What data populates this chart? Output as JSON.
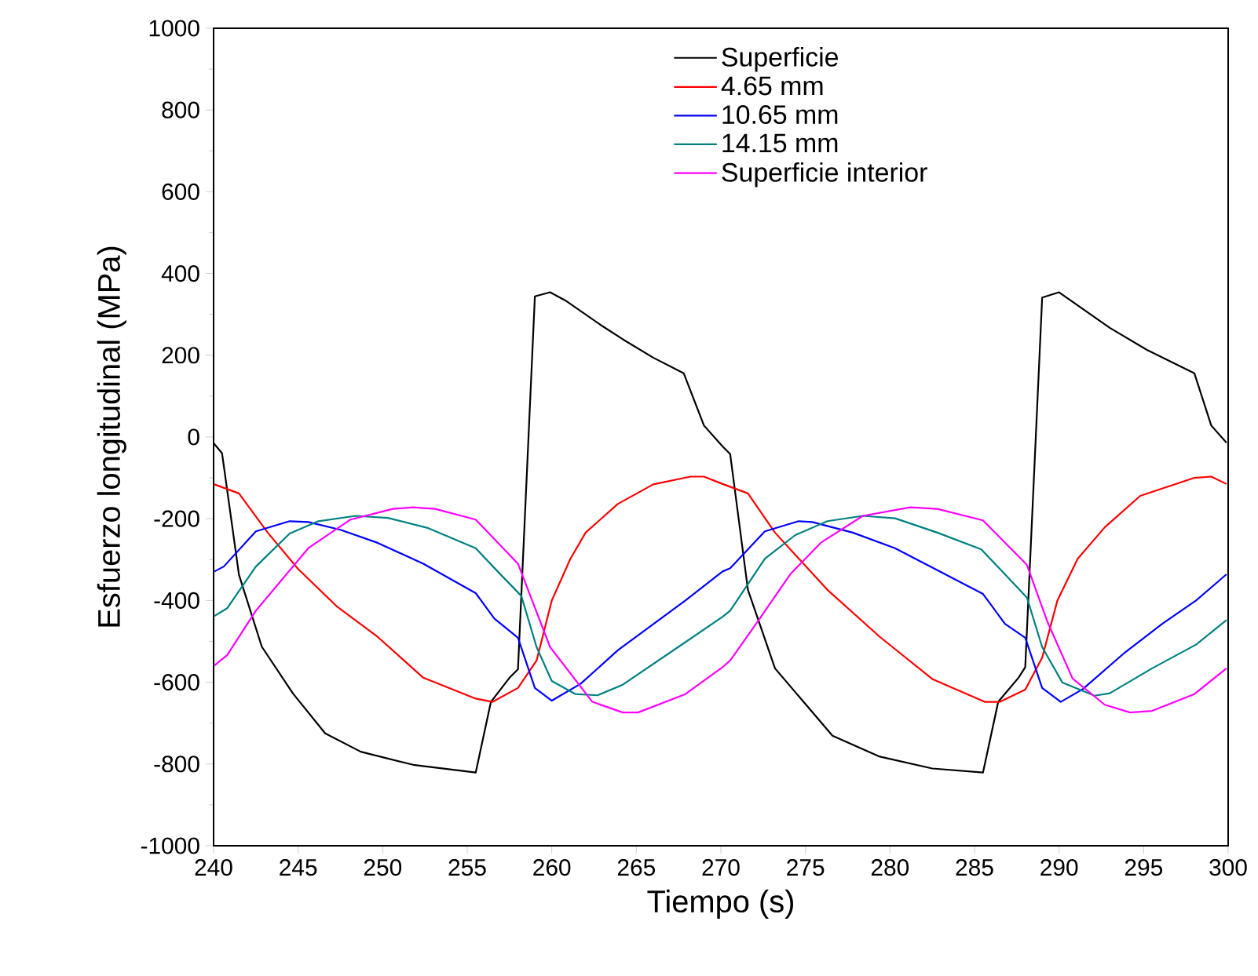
{
  "chart_data": {
    "type": "line",
    "xlabel": "Tiempo (s)",
    "ylabel": "Esfuerzo longitudinal (MPa)",
    "xlim": [
      240,
      300
    ],
    "ylim": [
      -1000,
      1000
    ],
    "xticks": [
      240,
      245,
      250,
      255,
      260,
      265,
      270,
      275,
      280,
      285,
      290,
      295,
      300
    ],
    "yticks": [
      -1000,
      -800,
      -600,
      -400,
      -200,
      0,
      200,
      400,
      600,
      800,
      1000
    ],
    "grid": false,
    "legend": "top",
    "marker": "none",
    "line_style": "solid",
    "series": [
      {
        "name": "Superficie",
        "color": "#000000",
        "x": [
          240,
          240.5,
          241.5,
          242.85,
          244.7,
          246.6,
          248.7,
          251.8,
          255.5,
          256.4,
          257.5,
          258.0,
          259.0,
          259.9,
          260.8,
          263.0,
          264.2,
          266.0,
          267.8,
          269.0,
          270.1,
          270.55,
          271.6,
          273.2,
          276.6,
          279.4,
          282.5,
          285.5,
          286.4,
          287.6,
          288.0,
          289.0,
          290.0,
          293.0,
          295.2,
          298.0,
          299.0,
          299.9
        ],
        "values": [
          -15,
          -40,
          -337,
          -513,
          -628,
          -725,
          -770,
          -802,
          -821,
          -648,
          -589,
          -568,
          344,
          354,
          334,
          271,
          239,
          194,
          156,
          28,
          -23,
          -42,
          -374,
          -566,
          -731,
          -782,
          -811,
          -821,
          -648,
          -589,
          -563,
          341,
          354,
          267,
          213,
          156,
          28,
          -14
        ]
      },
      {
        "name": "4.65 mm",
        "color": "#ff0000",
        "x": [
          240.05,
          241.5,
          243.2,
          245.0,
          247.3,
          249.7,
          252.4,
          255.5,
          256.5,
          258.0,
          259.1,
          260.0,
          261.1,
          262.0,
          263.9,
          266.0,
          268.2,
          269.0,
          270.1,
          271.6,
          273.2,
          276.3,
          279.4,
          282.5,
          285.6,
          286.5,
          288.0,
          289.0,
          289.9,
          291.1,
          292.7,
          294.8,
          298.0,
          299.0,
          299.9
        ],
        "values": [
          -116,
          -138,
          -234,
          -323,
          -415,
          -489,
          -589,
          -640,
          -648,
          -614,
          -547,
          -400,
          -298,
          -234,
          -164,
          -116,
          -97,
          -97,
          -115,
          -138,
          -234,
          -374,
          -489,
          -592,
          -648,
          -648,
          -618,
          -540,
          -400,
          -298,
          -221,
          -144,
          -100,
          -97,
          -115
        ]
      },
      {
        "name": "10.65 mm",
        "color": "#0000ff",
        "x": [
          240.05,
          240.6,
          242.5,
          244.5,
          245.6,
          247.5,
          249.7,
          252.4,
          255.5,
          256.6,
          258.0,
          259.0,
          260.0,
          261.7,
          263.9,
          267.9,
          270.1,
          270.55,
          272.6,
          274.6,
          275.4,
          277.8,
          280.3,
          282.8,
          285.5,
          286.8,
          288.0,
          289.0,
          290.1,
          291.4,
          293.9,
          296.1,
          298.1,
          299.9
        ],
        "values": [
          -329,
          -317,
          -231,
          -206,
          -208,
          -227,
          -259,
          -310,
          -382,
          -444,
          -491,
          -614,
          -645,
          -604,
          -522,
          -400,
          -329,
          -321,
          -231,
          -206,
          -208,
          -234,
          -272,
          -326,
          -384,
          -457,
          -491,
          -614,
          -648,
          -617,
          -527,
          -457,
          -400,
          -336
        ]
      },
      {
        "name": "14.15 mm",
        "color": "#008080",
        "x": [
          240.05,
          240.8,
          242.5,
          244.5,
          246.2,
          248.4,
          250.3,
          252.7,
          255.5,
          256.8,
          258.2,
          259.1,
          260.0,
          261.4,
          262.7,
          264.2,
          267.9,
          270.1,
          270.55,
          272.6,
          274.4,
          276.3,
          278.4,
          280.3,
          282.8,
          285.4,
          286.8,
          288.1,
          289.0,
          290.2,
          292.1,
          293.0,
          295.5,
          298.1,
          299.9
        ],
        "values": [
          -438,
          -419,
          -317,
          -236,
          -206,
          -193,
          -198,
          -223,
          -272,
          -329,
          -389,
          -514,
          -597,
          -629,
          -632,
          -606,
          -502,
          -440,
          -425,
          -298,
          -240,
          -206,
          -193,
          -199,
          -234,
          -275,
          -336,
          -393,
          -514,
          -601,
          -633,
          -627,
          -566,
          -508,
          -448
        ]
      },
      {
        "name": "Superficie interior",
        "color": "#ff00ff",
        "x": [
          240.05,
          240.8,
          242.5,
          245.6,
          248.1,
          250.6,
          251.8,
          253.1,
          255.5,
          258.0,
          259.9,
          262.4,
          264.2,
          265.1,
          267.9,
          270.1,
          270.55,
          272.3,
          274.1,
          275.9,
          278.4,
          281.2,
          282.8,
          285.5,
          288.1,
          289.3,
          290.8,
          292.7,
          294.2,
          295.5,
          298.0,
          299.9
        ],
        "values": [
          -559,
          -534,
          -425,
          -272,
          -202,
          -176,
          -172,
          -176,
          -202,
          -310,
          -514,
          -648,
          -674,
          -674,
          -629,
          -563,
          -547,
          -444,
          -336,
          -259,
          -193,
          -172,
          -176,
          -204,
          -313,
          -451,
          -591,
          -655,
          -674,
          -670,
          -629,
          -566
        ]
      }
    ]
  }
}
